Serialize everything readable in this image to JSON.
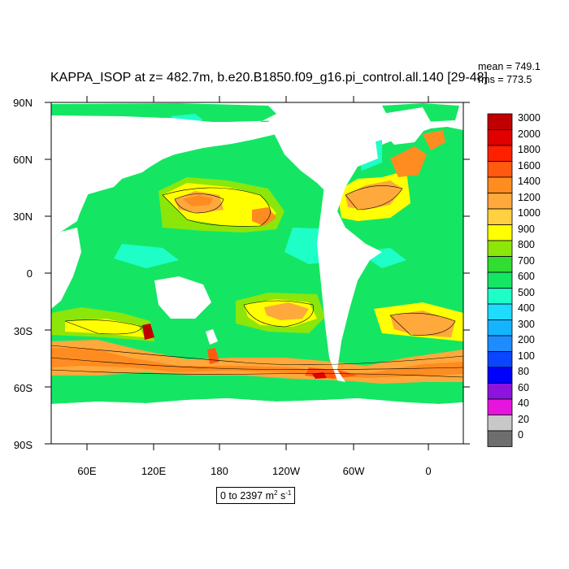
{
  "title": "KAPPA_ISOP at z= 482.7m, b.e20.B1850.f09_g16.pi_control.all.140 [29-48]",
  "stats": {
    "mean": "mean = 749.1",
    "rms": "rms = 773.5"
  },
  "y_ticks": [
    "90N",
    "60N",
    "30N",
    "0",
    "30S",
    "60S",
    "90S"
  ],
  "x_ticks": [
    "60E",
    "120E",
    "180",
    "120W",
    "60W",
    "0"
  ],
  "range": {
    "text": "0 to 2397 m",
    "sup1": "2",
    "mid": " s",
    "sup2": "-1"
  },
  "colorbar": {
    "labels": [
      "3000",
      "2000",
      "1800",
      "1600",
      "1400",
      "1200",
      "1000",
      "900",
      "800",
      "700",
      "600",
      "500",
      "400",
      "300",
      "200",
      "100",
      "80",
      "60",
      "40",
      "20",
      "0"
    ],
    "colors": [
      "#c00000",
      "#e00000",
      "#ff2000",
      "#ff5a10",
      "#ff8c20",
      "#ffa83c",
      "#ffd040",
      "#ffff00",
      "#8ce60a",
      "#32dc32",
      "#14e664",
      "#1effc8",
      "#1edcff",
      "#14b4ff",
      "#1e8cff",
      "#0a46ff",
      "#0000ff",
      "#8c14dc",
      "#e614dc",
      "#c8c8c8",
      "#6e6e6e"
    ]
  }
}
